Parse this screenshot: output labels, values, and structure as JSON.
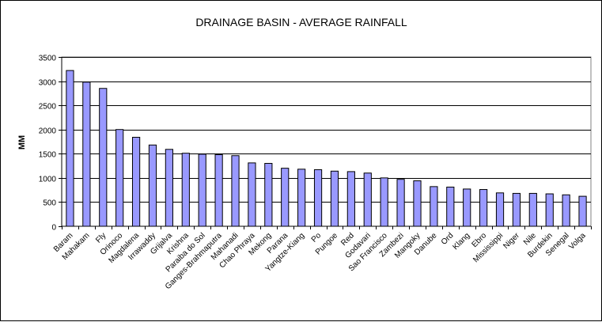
{
  "chart_data": {
    "type": "bar",
    "title": "DRAINAGE BASIN - AVERAGE RAINFALL",
    "xlabel": "",
    "ylabel": "MM",
    "ylim": [
      0,
      3500
    ],
    "yticks": [
      0,
      500,
      1000,
      1500,
      2000,
      2500,
      3000,
      3500
    ],
    "grid": true,
    "legend": "none",
    "colors": {
      "bar_fill": "#9999ff",
      "bar_stroke": "#000000",
      "plot_background": "#ffffff",
      "gridline": "#000000"
    },
    "categories": [
      "Baram",
      "Mahakam",
      "Fly",
      "Orinoco",
      "Magdalena",
      "Irrawaddy",
      "Grijalva",
      "Krishna",
      "Paraiba do Sol",
      "Ganges-Brahmaputra",
      "Mahanadi",
      "Chao Phraya",
      "Mekong",
      "Parana",
      "Yangtze-Kiang",
      "Po",
      "Pungoe",
      "Red",
      "Godavari",
      "Sao Francisco",
      "Zambezi",
      "Mangoky",
      "Danube",
      "Ord",
      "Klang",
      "Ebro",
      "Mississippi",
      "Niger",
      "Nile",
      "Burdekin",
      "Senegal",
      "Volga"
    ],
    "values": [
      3220,
      2980,
      2850,
      2000,
      1840,
      1680,
      1590,
      1510,
      1490,
      1480,
      1460,
      1310,
      1300,
      1200,
      1180,
      1170,
      1140,
      1130,
      1100,
      1000,
      970,
      940,
      820,
      810,
      770,
      760,
      690,
      680,
      680,
      670,
      650,
      620
    ]
  }
}
